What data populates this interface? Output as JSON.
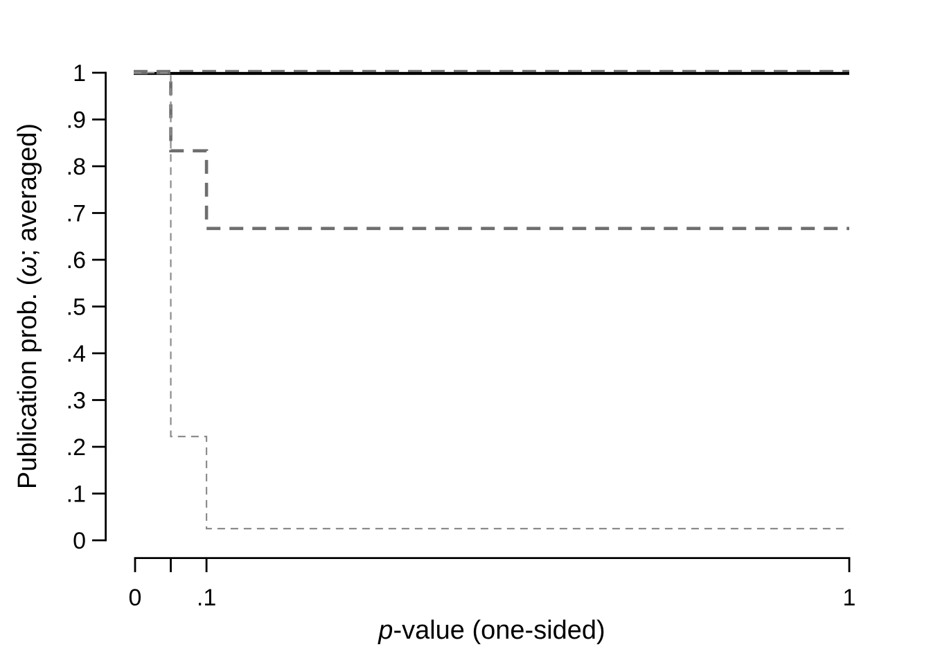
{
  "figure": {
    "background_color": "#ffffff",
    "plot_area_background": "#ffffff"
  },
  "chart_data": {
    "type": "line",
    "subtype": "step",
    "title": "",
    "xlabel": {
      "italic": "p",
      "rest": "-value (one-sided)"
    },
    "ylabel": {
      "prefix": "Publication prob. (",
      "symbol": "ω",
      "suffix": "; averaged)"
    },
    "xlim": [
      0,
      1
    ],
    "ylim": [
      0,
      1
    ],
    "grid": false,
    "legend": "none",
    "axis_color": "#000000",
    "x_ticks": [
      {
        "value": 0,
        "label": "0"
      },
      {
        "value": 0.05,
        "label": ""
      },
      {
        "value": 0.1,
        "label": ".1"
      },
      {
        "value": 1,
        "label": "1"
      }
    ],
    "y_ticks": [
      {
        "value": 0,
        "label": "0"
      },
      {
        "value": 0.1,
        "label": ".1"
      },
      {
        "value": 0.2,
        "label": ".2"
      },
      {
        "value": 0.3,
        "label": ".3"
      },
      {
        "value": 0.4,
        "label": ".4"
      },
      {
        "value": 0.5,
        "label": ".5"
      },
      {
        "value": 0.6,
        "label": ".6"
      },
      {
        "value": 0.7,
        "label": ".7"
      },
      {
        "value": 0.8,
        "label": ".8"
      },
      {
        "value": 0.9,
        "label": ".9"
      },
      {
        "value": 1,
        "label": "1"
      }
    ],
    "series": [
      {
        "name": "constant-one-thick-dashed",
        "description": "Thick gray dashed step function constant at publication probability 1 for all p-values",
        "color": "#7a7a7a",
        "line_style": "dashed",
        "width": 4.2,
        "dash": [
          20,
          13
        ],
        "points": [
          [
            0,
            1
          ],
          [
            1,
            1
          ]
        ]
      },
      {
        "name": "constant-one-solid",
        "description": "Solid black line constant at publication probability 1 for all p-values",
        "color": "#000000",
        "line_style": "solid",
        "width": 4.2,
        "dash": null,
        "points": [
          [
            0,
            1
          ],
          [
            1,
            1
          ]
        ]
      },
      {
        "name": "step-thick-dashed",
        "description": "Thick gray dashed step function: 1 for p<.05, .833 for .05<p<.1, .667 for p>.1",
        "color": "#6e6e6e",
        "line_style": "dashed",
        "width": 4.6,
        "dash": [
          20,
          13
        ],
        "points": [
          [
            0,
            1
          ],
          [
            0.05,
            1
          ],
          [
            0.05,
            0.833
          ],
          [
            0.1,
            0.833
          ],
          [
            0.1,
            0.667
          ],
          [
            1,
            0.667
          ]
        ]
      },
      {
        "name": "step-thin-dashed",
        "description": "Thin light-gray dashed step function: 1 for p<.05, .222 for .05<p<.1, .025 for p>.1",
        "color": "#8c8c8c",
        "line_style": "dashed",
        "width": 2.2,
        "dash": [
          11,
          8
        ],
        "points": [
          [
            0,
            1
          ],
          [
            0.05,
            1
          ],
          [
            0.05,
            0.222
          ],
          [
            0.1,
            0.222
          ],
          [
            0.1,
            0.025
          ],
          [
            1,
            0.025
          ]
        ]
      }
    ]
  }
}
